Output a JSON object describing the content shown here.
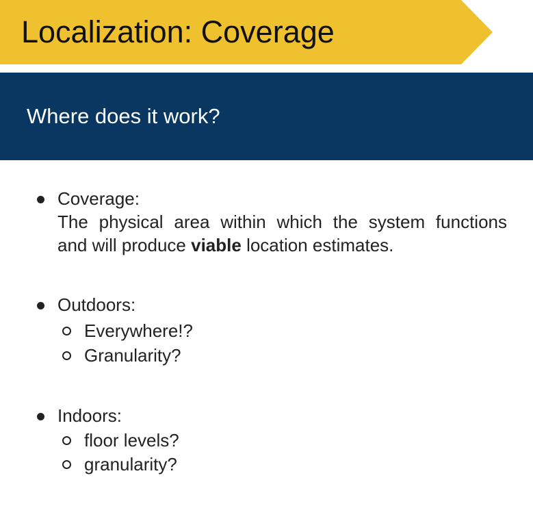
{
  "slide": {
    "title": "Localization: Coverage",
    "subtitle": "Where does it work?",
    "colors": {
      "title_banner": "#F0C12F",
      "subtitle_bar": "#093762",
      "text": "#222222"
    }
  },
  "bullets": {
    "coverage": {
      "label": "Coverage:",
      "line1": "The physical area within which the system functions",
      "line2_before": "and will produce ",
      "line2_bold": "viable",
      "line2_after": " location estimates."
    },
    "outdoors": {
      "label": "Outdoors:",
      "items": [
        "Everywhere!?",
        "Granularity?"
      ]
    },
    "indoors": {
      "label": "Indoors:",
      "items": [
        "floor levels?",
        "granularity?"
      ]
    }
  }
}
